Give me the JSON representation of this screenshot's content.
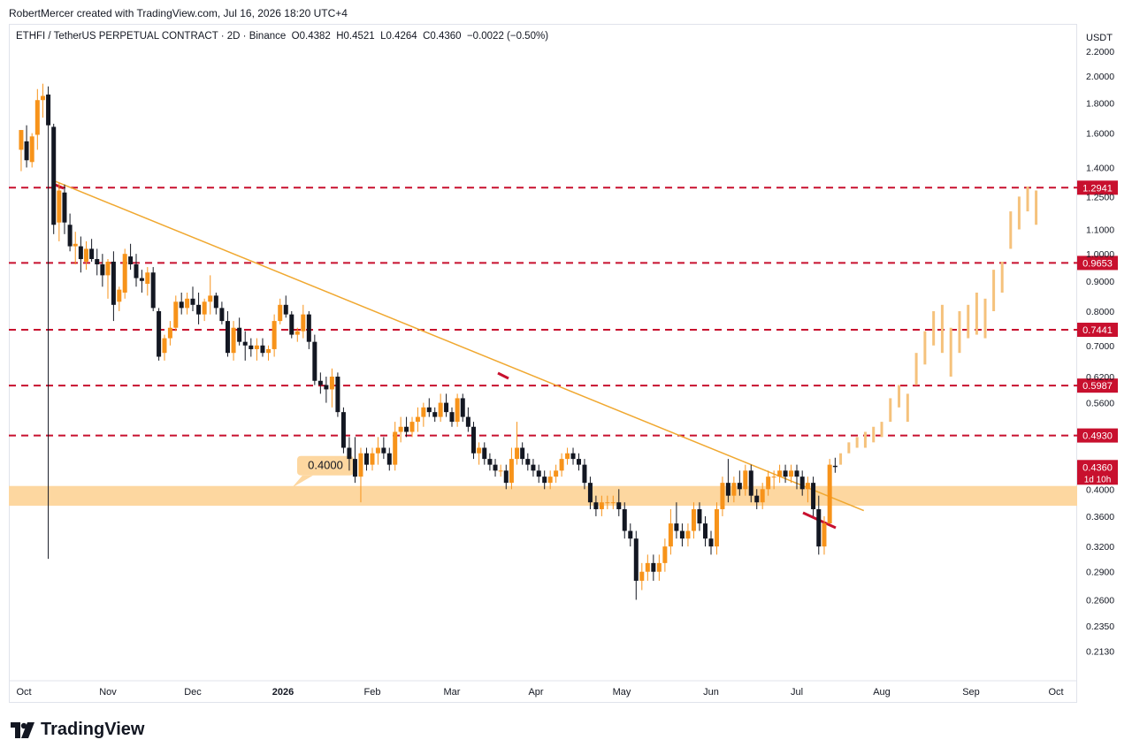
{
  "header": {
    "credit": "RobertMercer created with TradingView.com, Jul 16, 2026 18:20 UTC+4"
  },
  "legend": {
    "symbol": "ETHFI / TetherUS PERPETUAL CONTRACT · 2D · Binance",
    "o_label": "O",
    "o_value": "0.4382",
    "h_label": "H",
    "h_value": "0.4521",
    "l_label": "L",
    "l_value": "0.4264",
    "c_label": "C",
    "c_value": "0.4360",
    "change": "−0.0022 (−0.50%)"
  },
  "brand": {
    "name": "TradingView",
    "icon": "tradingview-logo-icon"
  },
  "colors": {
    "up": "#f7931a",
    "down": "#131722",
    "projection": "#f5c27c",
    "level_line": "#c8102e",
    "trendline": "#f0a830",
    "zone": "#fdd7a0"
  },
  "chart_data": {
    "type": "candlestick",
    "y_unit": "USDT",
    "y_scale": "log",
    "ylim": [
      0.195,
      2.35
    ],
    "y_ticks": [
      "2.2000",
      "2.0000",
      "1.8000",
      "1.6000",
      "1.4000",
      "1.2500",
      "1.1000",
      "1.0000",
      "0.9000",
      "0.8000",
      "0.7000",
      "0.6200",
      "0.5600",
      "0.4000",
      "0.3600",
      "0.3200",
      "0.2900",
      "0.2600",
      "0.2350",
      "0.2130"
    ],
    "x_labels": [
      "Oct",
      "Nov",
      "Dec",
      "2026",
      "Feb",
      "Mar",
      "Apr",
      "May",
      "Jun",
      "Jul",
      "Aug",
      "Sep",
      "Oct"
    ],
    "x_label_bold": [
      "2026"
    ],
    "horizontal_levels": [
      {
        "value": 1.2941,
        "label": "1.2941"
      },
      {
        "value": 0.9653,
        "label": "0.9653"
      },
      {
        "value": 0.7441,
        "label": "0.7441"
      },
      {
        "value": 0.5987,
        "label": "0.5987"
      },
      {
        "value": 0.493,
        "label": "0.4930"
      }
    ],
    "last_price": {
      "value": 0.436,
      "label": "0.4360",
      "countdown": "1d 10h"
    },
    "support_zone": {
      "low": 0.375,
      "high": 0.405,
      "label": "0.4000"
    },
    "trendline": {
      "start": [
        "2025-10-12",
        1.33
      ],
      "end": [
        "2026-07-19",
        0.368
      ]
    },
    "candles": [
      [
        "2025-09-30",
        1.5,
        1.62,
        1.38,
        1.62
      ],
      [
        "2025-10-02",
        1.55,
        1.65,
        1.4,
        1.44
      ],
      [
        "2025-10-04",
        1.43,
        1.6,
        1.4,
        1.58
      ],
      [
        "2025-10-06",
        1.59,
        1.9,
        1.5,
        1.82
      ],
      [
        "2025-10-08",
        1.82,
        1.94,
        1.7,
        1.85
      ],
      [
        "2025-10-10",
        1.86,
        1.92,
        0.305,
        1.65
      ],
      [
        "2025-10-12",
        1.64,
        1.66,
        1.08,
        1.12
      ],
      [
        "2025-10-14",
        1.13,
        1.32,
        1.05,
        1.28
      ],
      [
        "2025-10-16",
        1.27,
        1.31,
        1.08,
        1.13
      ],
      [
        "2025-10-18",
        1.12,
        1.17,
        1.01,
        1.03
      ],
      [
        "2025-10-20",
        1.03,
        1.09,
        0.96,
        1.04
      ],
      [
        "2025-10-22",
        1.03,
        1.07,
        0.93,
        0.98
      ],
      [
        "2025-10-24",
        0.97,
        1.05,
        0.94,
        1.02
      ],
      [
        "2025-10-26",
        1.02,
        1.06,
        0.97,
        0.98
      ],
      [
        "2025-10-28",
        0.98,
        1.02,
        0.92,
        0.96
      ],
      [
        "2025-10-30",
        0.96,
        1.0,
        0.88,
        0.92
      ],
      [
        "2025-11-01",
        0.92,
        0.98,
        0.84,
        0.97
      ],
      [
        "2025-11-03",
        0.97,
        1.01,
        0.77,
        0.82
      ],
      [
        "2025-11-05",
        0.83,
        0.88,
        0.8,
        0.87
      ],
      [
        "2025-11-07",
        0.86,
        1.02,
        0.84,
        1.0
      ],
      [
        "2025-11-09",
        0.99,
        1.04,
        0.94,
        0.96
      ],
      [
        "2025-11-11",
        0.96,
        1.0,
        0.88,
        0.91
      ],
      [
        "2025-11-13",
        0.91,
        0.94,
        0.86,
        0.9
      ],
      [
        "2025-11-15",
        0.89,
        0.95,
        0.85,
        0.93
      ],
      [
        "2025-11-17",
        0.93,
        0.95,
        0.8,
        0.81
      ],
      [
        "2025-11-19",
        0.8,
        0.81,
        0.66,
        0.67
      ],
      [
        "2025-11-21",
        0.68,
        0.73,
        0.66,
        0.72
      ],
      [
        "2025-11-23",
        0.72,
        0.77,
        0.7,
        0.75
      ],
      [
        "2025-11-25",
        0.75,
        0.85,
        0.74,
        0.83
      ],
      [
        "2025-11-27",
        0.83,
        0.86,
        0.79,
        0.81
      ],
      [
        "2025-11-29",
        0.81,
        0.86,
        0.79,
        0.84
      ],
      [
        "2025-12-01",
        0.84,
        0.88,
        0.8,
        0.82
      ],
      [
        "2025-12-03",
        0.82,
        0.86,
        0.76,
        0.79
      ],
      [
        "2025-12-05",
        0.79,
        0.84,
        0.77,
        0.83
      ],
      [
        "2025-12-07",
        0.83,
        0.92,
        0.79,
        0.85
      ],
      [
        "2025-12-09",
        0.85,
        0.86,
        0.79,
        0.81
      ],
      [
        "2025-12-11",
        0.81,
        0.83,
        0.76,
        0.77
      ],
      [
        "2025-12-13",
        0.77,
        0.8,
        0.67,
        0.68
      ],
      [
        "2025-12-15",
        0.68,
        0.77,
        0.66,
        0.75
      ],
      [
        "2025-12-17",
        0.75,
        0.78,
        0.7,
        0.71
      ],
      [
        "2025-12-19",
        0.71,
        0.74,
        0.66,
        0.7
      ],
      [
        "2025-12-21",
        0.7,
        0.72,
        0.67,
        0.69
      ],
      [
        "2025-12-23",
        0.69,
        0.72,
        0.66,
        0.7
      ],
      [
        "2025-12-25",
        0.7,
        0.72,
        0.67,
        0.68
      ],
      [
        "2025-12-27",
        0.68,
        0.7,
        0.66,
        0.69
      ],
      [
        "2025-12-29",
        0.69,
        0.79,
        0.67,
        0.77
      ],
      [
        "2025-12-31",
        0.77,
        0.84,
        0.76,
        0.82
      ],
      [
        "2026-01-02",
        0.82,
        0.85,
        0.78,
        0.79
      ],
      [
        "2026-01-04",
        0.79,
        0.8,
        0.72,
        0.73
      ],
      [
        "2026-01-06",
        0.73,
        0.75,
        0.71,
        0.74
      ],
      [
        "2026-01-08",
        0.74,
        0.82,
        0.72,
        0.79
      ],
      [
        "2026-01-10",
        0.79,
        0.8,
        0.69,
        0.71
      ],
      [
        "2026-01-12",
        0.71,
        0.73,
        0.6,
        0.61
      ],
      [
        "2026-01-14",
        0.61,
        0.63,
        0.58,
        0.6
      ],
      [
        "2026-01-16",
        0.6,
        0.62,
        0.56,
        0.59
      ],
      [
        "2026-01-18",
        0.59,
        0.64,
        0.55,
        0.62
      ],
      [
        "2026-01-20",
        0.62,
        0.63,
        0.53,
        0.54
      ],
      [
        "2026-01-22",
        0.54,
        0.55,
        0.46,
        0.47
      ],
      [
        "2026-01-24",
        0.47,
        0.49,
        0.43,
        0.45
      ],
      [
        "2026-01-26",
        0.45,
        0.49,
        0.41,
        0.42
      ],
      [
        "2026-01-28",
        0.42,
        0.47,
        0.38,
        0.46
      ],
      [
        "2026-01-30",
        0.46,
        0.47,
        0.43,
        0.44
      ],
      [
        "2026-02-01",
        0.44,
        0.47,
        0.43,
        0.46
      ],
      [
        "2026-02-03",
        0.46,
        0.49,
        0.44,
        0.47
      ],
      [
        "2026-02-05",
        0.47,
        0.49,
        0.45,
        0.46
      ],
      [
        "2026-02-07",
        0.46,
        0.47,
        0.43,
        0.44
      ],
      [
        "2026-02-09",
        0.44,
        0.52,
        0.43,
        0.5
      ],
      [
        "2026-02-11",
        0.5,
        0.53,
        0.48,
        0.51
      ],
      [
        "2026-02-13",
        0.51,
        0.53,
        0.49,
        0.5
      ],
      [
        "2026-02-15",
        0.5,
        0.53,
        0.49,
        0.52
      ],
      [
        "2026-02-17",
        0.52,
        0.55,
        0.5,
        0.53
      ],
      [
        "2026-02-19",
        0.53,
        0.56,
        0.51,
        0.55
      ],
      [
        "2026-02-21",
        0.55,
        0.57,
        0.53,
        0.54
      ],
      [
        "2026-02-23",
        0.54,
        0.55,
        0.52,
        0.53
      ],
      [
        "2026-02-25",
        0.53,
        0.58,
        0.52,
        0.56
      ],
      [
        "2026-02-27",
        0.56,
        0.58,
        0.53,
        0.54
      ],
      [
        "2026-03-01",
        0.54,
        0.55,
        0.51,
        0.52
      ],
      [
        "2026-03-03",
        0.52,
        0.58,
        0.51,
        0.57
      ],
      [
        "2026-03-05",
        0.57,
        0.58,
        0.52,
        0.53
      ],
      [
        "2026-03-07",
        0.53,
        0.55,
        0.5,
        0.51
      ],
      [
        "2026-03-09",
        0.51,
        0.52,
        0.45,
        0.46
      ],
      [
        "2026-03-11",
        0.46,
        0.48,
        0.44,
        0.47
      ],
      [
        "2026-03-13",
        0.47,
        0.48,
        0.44,
        0.45
      ],
      [
        "2026-03-15",
        0.45,
        0.46,
        0.43,
        0.44
      ],
      [
        "2026-03-17",
        0.44,
        0.45,
        0.42,
        0.43
      ],
      [
        "2026-03-19",
        0.43,
        0.44,
        0.42,
        0.43
      ],
      [
        "2026-03-21",
        0.43,
        0.44,
        0.4,
        0.41
      ],
      [
        "2026-03-23",
        0.41,
        0.47,
        0.4,
        0.45
      ],
      [
        "2026-03-25",
        0.45,
        0.52,
        0.44,
        0.47
      ],
      [
        "2026-03-27",
        0.47,
        0.48,
        0.44,
        0.45
      ],
      [
        "2026-03-29",
        0.45,
        0.46,
        0.43,
        0.44
      ],
      [
        "2026-03-31",
        0.44,
        0.45,
        0.42,
        0.43
      ],
      [
        "2026-04-02",
        0.43,
        0.44,
        0.41,
        0.42
      ],
      [
        "2026-04-04",
        0.42,
        0.43,
        0.4,
        0.41
      ],
      [
        "2026-04-06",
        0.41,
        0.43,
        0.4,
        0.42
      ],
      [
        "2026-04-08",
        0.42,
        0.44,
        0.41,
        0.43
      ],
      [
        "2026-04-10",
        0.43,
        0.46,
        0.42,
        0.45
      ],
      [
        "2026-04-12",
        0.45,
        0.47,
        0.44,
        0.46
      ],
      [
        "2026-04-14",
        0.46,
        0.47,
        0.44,
        0.45
      ],
      [
        "2026-04-16",
        0.45,
        0.46,
        0.43,
        0.44
      ],
      [
        "2026-04-18",
        0.44,
        0.45,
        0.4,
        0.41
      ],
      [
        "2026-04-20",
        0.41,
        0.42,
        0.37,
        0.38
      ],
      [
        "2026-04-22",
        0.38,
        0.39,
        0.36,
        0.37
      ],
      [
        "2026-04-24",
        0.37,
        0.39,
        0.36,
        0.38
      ],
      [
        "2026-04-26",
        0.38,
        0.39,
        0.37,
        0.38
      ],
      [
        "2026-04-28",
        0.38,
        0.39,
        0.37,
        0.38
      ],
      [
        "2026-04-30",
        0.38,
        0.4,
        0.36,
        0.37
      ],
      [
        "2026-05-02",
        0.37,
        0.38,
        0.33,
        0.34
      ],
      [
        "2026-05-04",
        0.34,
        0.35,
        0.32,
        0.33
      ],
      [
        "2026-05-06",
        0.33,
        0.34,
        0.26,
        0.28
      ],
      [
        "2026-05-08",
        0.28,
        0.3,
        0.27,
        0.29
      ],
      [
        "2026-05-10",
        0.29,
        0.31,
        0.28,
        0.3
      ],
      [
        "2026-05-12",
        0.3,
        0.31,
        0.28,
        0.29
      ],
      [
        "2026-05-14",
        0.29,
        0.31,
        0.28,
        0.3
      ],
      [
        "2026-05-16",
        0.3,
        0.33,
        0.29,
        0.32
      ],
      [
        "2026-05-18",
        0.32,
        0.37,
        0.31,
        0.35
      ],
      [
        "2026-05-20",
        0.35,
        0.38,
        0.33,
        0.34
      ],
      [
        "2026-05-22",
        0.34,
        0.35,
        0.32,
        0.33
      ],
      [
        "2026-05-24",
        0.33,
        0.35,
        0.32,
        0.34
      ],
      [
        "2026-05-26",
        0.34,
        0.38,
        0.33,
        0.37
      ],
      [
        "2026-05-28",
        0.37,
        0.38,
        0.34,
        0.35
      ],
      [
        "2026-05-30",
        0.35,
        0.36,
        0.32,
        0.33
      ],
      [
        "2026-06-01",
        0.33,
        0.34,
        0.31,
        0.32
      ],
      [
        "2026-06-03",
        0.32,
        0.38,
        0.31,
        0.37
      ],
      [
        "2026-06-05",
        0.37,
        0.42,
        0.36,
        0.41
      ],
      [
        "2026-06-07",
        0.41,
        0.45,
        0.38,
        0.39
      ],
      [
        "2026-06-09",
        0.39,
        0.42,
        0.38,
        0.41
      ],
      [
        "2026-06-11",
        0.41,
        0.43,
        0.39,
        0.4
      ],
      [
        "2026-06-13",
        0.4,
        0.44,
        0.39,
        0.43
      ],
      [
        "2026-06-15",
        0.43,
        0.44,
        0.38,
        0.39
      ],
      [
        "2026-06-17",
        0.39,
        0.4,
        0.37,
        0.38
      ],
      [
        "2026-06-19",
        0.38,
        0.41,
        0.37,
        0.4
      ],
      [
        "2026-06-21",
        0.4,
        0.43,
        0.39,
        0.42
      ],
      [
        "2026-06-23",
        0.42,
        0.43,
        0.4,
        0.42
      ],
      [
        "2026-06-25",
        0.42,
        0.44,
        0.41,
        0.43
      ],
      [
        "2026-06-27",
        0.43,
        0.44,
        0.41,
        0.42
      ],
      [
        "2026-06-29",
        0.42,
        0.44,
        0.41,
        0.43
      ],
      [
        "2026-07-01",
        0.43,
        0.44,
        0.4,
        0.42
      ],
      [
        "2026-07-03",
        0.42,
        0.43,
        0.39,
        0.4
      ],
      [
        "2026-07-05",
        0.4,
        0.42,
        0.38,
        0.41
      ],
      [
        "2026-07-07",
        0.41,
        0.42,
        0.36,
        0.37
      ],
      [
        "2026-07-09",
        0.37,
        0.39,
        0.31,
        0.32
      ],
      [
        "2026-07-11",
        0.32,
        0.36,
        0.31,
        0.35
      ],
      [
        "2026-07-13",
        0.35,
        0.45,
        0.35,
        0.44
      ],
      [
        "2026-07-15",
        0.4382,
        0.4521,
        0.4264,
        0.436
      ]
    ]
  }
}
